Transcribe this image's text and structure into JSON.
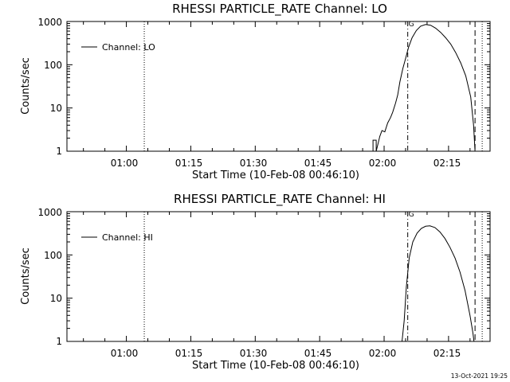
{
  "chart_data": [
    {
      "type": "line",
      "title": "RHESSI PARTICLE_RATE Channel: LO",
      "xlabel": "Start Time (10-Feb-08 00:46:10)",
      "ylabel": "Counts/sec",
      "yscale": "log",
      "ylim": [
        1,
        1000
      ],
      "xlim": [
        "00:46:10",
        "02:24:40"
      ],
      "xticks": [
        "01:00",
        "01:15",
        "01:30",
        "01:45",
        "02:00",
        "02:15"
      ],
      "yticks": [
        "1",
        "10",
        "100",
        "1000"
      ],
      "legend": {
        "label": "Channel: LO",
        "position": "top-left"
      },
      "grid": false,
      "markers": [
        {
          "time": "01:04:10",
          "style": "dotted"
        },
        {
          "time": "02:05:30",
          "style": "dash-dot",
          "label": "G"
        },
        {
          "time": "02:21:10",
          "style": "dashed"
        },
        {
          "time": "02:22:50",
          "style": "dotted"
        }
      ],
      "series": [
        {
          "name": "Channel: LO",
          "x": [
            "01:57:25",
            "01:57:25",
            "01:58:10",
            "01:58:10",
            "01:59:00",
            "01:59:30",
            "02:00:10",
            "02:00:50",
            "02:01:30",
            "02:02:00",
            "02:02:40",
            "02:03:10",
            "02:03:40",
            "02:04:20",
            "02:05:00",
            "02:05:40",
            "02:06:30",
            "02:07:30",
            "02:08:30",
            "02:09:40",
            "02:10:50",
            "02:12:00",
            "02:13:10",
            "02:14:20",
            "02:15:30",
            "02:16:40",
            "02:17:50",
            "02:19:00",
            "02:20:10",
            "02:20:50",
            "02:21:10"
          ],
          "y": [
            1,
            1.8,
            1.8,
            1,
            2.2,
            3,
            2.8,
            4.5,
            6,
            8,
            13,
            20,
            40,
            80,
            140,
            250,
            420,
            620,
            780,
            850,
            820,
            700,
            560,
            420,
            300,
            190,
            110,
            55,
            18,
            4,
            1
          ]
        }
      ]
    },
    {
      "type": "line",
      "title": "RHESSI PARTICLE_RATE Channel: HI",
      "xlabel": "Start Time (10-Feb-08 00:46:10)",
      "ylabel": "Counts/sec",
      "yscale": "log",
      "ylim": [
        1,
        1000
      ],
      "xlim": [
        "00:46:10",
        "02:24:40"
      ],
      "xticks": [
        "01:00",
        "01:15",
        "01:30",
        "01:45",
        "02:00",
        "02:15"
      ],
      "yticks": [
        "1",
        "10",
        "100",
        "1000"
      ],
      "legend": {
        "label": "Channel: HI",
        "position": "top-left"
      },
      "grid": false,
      "markers": [
        {
          "time": "01:04:10",
          "style": "dotted"
        },
        {
          "time": "02:05:30",
          "style": "dash-dot",
          "label": "G"
        },
        {
          "time": "02:21:10",
          "style": "dashed"
        },
        {
          "time": "02:22:50",
          "style": "dotted"
        }
      ],
      "series": [
        {
          "name": "Channel: HI",
          "x": [
            "02:04:10",
            "02:04:40",
            "02:05:10",
            "02:05:50",
            "02:06:40",
            "02:07:40",
            "02:08:40",
            "02:09:40",
            "02:10:40",
            "02:11:50",
            "02:13:00",
            "02:14:10",
            "02:15:20",
            "02:16:30",
            "02:17:40",
            "02:18:50",
            "02:20:00",
            "02:20:40",
            "02:20:55"
          ],
          "y": [
            1,
            3,
            18,
            85,
            200,
            320,
            410,
            460,
            470,
            430,
            340,
            240,
            150,
            85,
            40,
            15,
            4,
            1.6,
            1
          ]
        }
      ]
    }
  ],
  "timestamp": "13-Oct-2021 19:25"
}
